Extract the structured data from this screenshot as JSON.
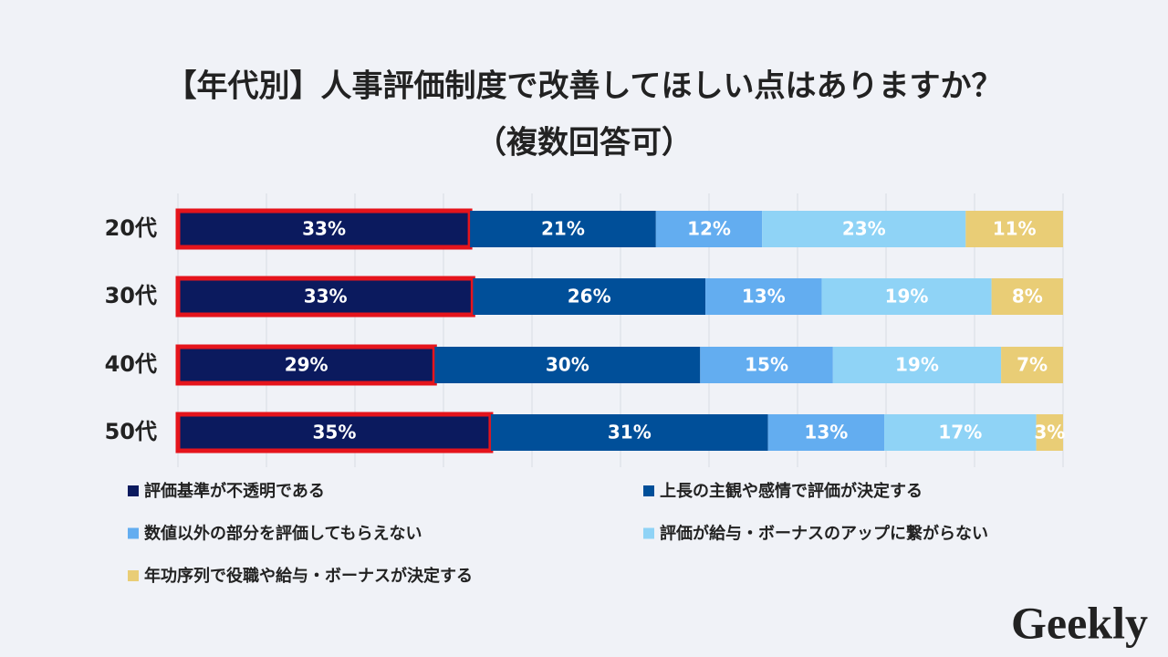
{
  "chart_data": {
    "type": "stacked-bar-horizontal",
    "title": "【年代別】人事評価制度で改善してほしい点はありますか？",
    "subtitle": "（複数回答可）",
    "categories": [
      "20代",
      "30代",
      "40代",
      "50代"
    ],
    "series": [
      {
        "name": "評価基準が不透明である",
        "color": "#0b1a5e",
        "values": [
          33,
          33,
          29,
          35
        ],
        "value_labels": [
          "33%",
          "33%",
          "29%",
          "35%"
        ]
      },
      {
        "name": "上長の主観や感情で評価が決定する",
        "color": "#004f99",
        "values": [
          21,
          26,
          30,
          31
        ],
        "value_labels": [
          "21%",
          "26%",
          "30%",
          "31%"
        ]
      },
      {
        "name": "数値以外の部分を評価してもらえない",
        "color": "#63adf0",
        "values": [
          12,
          13,
          15,
          13
        ],
        "value_labels": [
          "12%",
          "13%",
          "15%",
          "13%"
        ]
      },
      {
        "name": "評価が給与・ボーナスのアップに繋がらない",
        "color": "#8fd3f6",
        "values": [
          23,
          19,
          19,
          17
        ],
        "value_labels": [
          "23%",
          "19%",
          "19%",
          "17%"
        ]
      },
      {
        "name": "年功序列で役職や給与・ボーナスが決定する",
        "color": "#e9cd76",
        "values": [
          11,
          8,
          7,
          3
        ],
        "value_labels": [
          "11%",
          "8%",
          "7%",
          "3%"
        ]
      }
    ],
    "grid": true,
    "highlight": {
      "series": 0,
      "color": "#e5141c"
    }
  },
  "logo": "Geekly"
}
